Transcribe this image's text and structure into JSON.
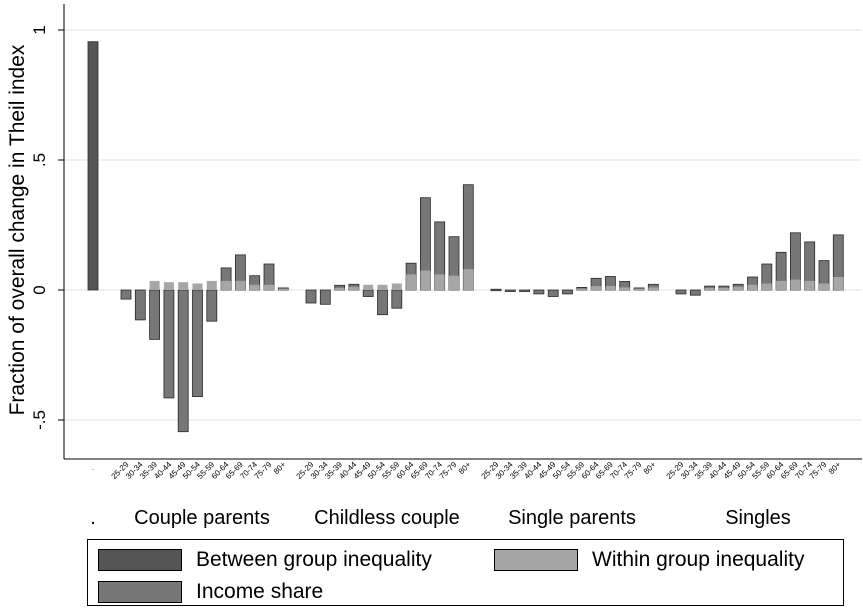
{
  "chart_data": {
    "type": "bar",
    "ylabel": "Fraction of overall change in Theil index",
    "xlabel": "",
    "ylim": [
      -0.65,
      1.1
    ],
    "yticks": [
      1,
      0.5,
      0,
      -0.5
    ],
    "ytick_labels": [
      "1",
      ".5",
      "0",
      "-.5"
    ],
    "grid": true,
    "age_groups": [
      "25-29",
      "30-34",
      "35-39",
      "40-44",
      "45-49",
      "50-54",
      "55-59",
      "60-64",
      "65-69",
      "70-74",
      "75-79",
      "80+"
    ],
    "groups": [
      {
        "label": ".",
        "between": 0.955
      },
      {
        "label": "Couple parents",
        "income_share": [
          -0.035,
          -0.115,
          -0.19,
          -0.415,
          -0.545,
          -0.41,
          -0.12,
          0.085,
          0.135,
          0.055,
          0.1,
          0.008
        ],
        "within": [
          0.0,
          0.0,
          0.035,
          0.03,
          0.03,
          0.025,
          0.035,
          0.035,
          0.035,
          0.02,
          0.02,
          0.005
        ]
      },
      {
        "label": "Childless couple",
        "income_share": [
          -0.05,
          -0.055,
          0.018,
          0.022,
          -0.025,
          -0.095,
          -0.07,
          0.103,
          0.355,
          0.262,
          0.205,
          0.405
        ],
        "within": [
          0.0,
          0.0,
          0.008,
          0.012,
          0.02,
          0.02,
          0.025,
          0.06,
          0.075,
          0.06,
          0.055,
          0.08
        ]
      },
      {
        "label": "Single parents",
        "income_share": [
          0.003,
          -0.005,
          -0.005,
          -0.015,
          -0.025,
          -0.015,
          0.01,
          0.045,
          0.052,
          0.033,
          0.008,
          0.022
        ],
        "within": [
          0.0,
          0.0,
          0.0,
          0.0,
          0.0,
          0.0,
          0.005,
          0.015,
          0.015,
          0.01,
          0.005,
          0.01
        ]
      },
      {
        "label": "Singles",
        "income_share": [
          -0.015,
          -0.02,
          0.015,
          0.015,
          0.022,
          0.05,
          0.1,
          0.145,
          0.22,
          0.185,
          0.113,
          0.212
        ],
        "within": [
          0.0,
          0.0,
          0.008,
          0.008,
          0.012,
          0.02,
          0.025,
          0.035,
          0.04,
          0.035,
          0.025,
          0.05
        ]
      }
    ],
    "legend": {
      "placement": "bottom",
      "items": [
        {
          "label": "Between group inequality",
          "color": "#555555"
        },
        {
          "label": "Within group inequality",
          "color": "#a6a6a6"
        },
        {
          "label": "Income share",
          "color": "#777777"
        }
      ]
    }
  }
}
